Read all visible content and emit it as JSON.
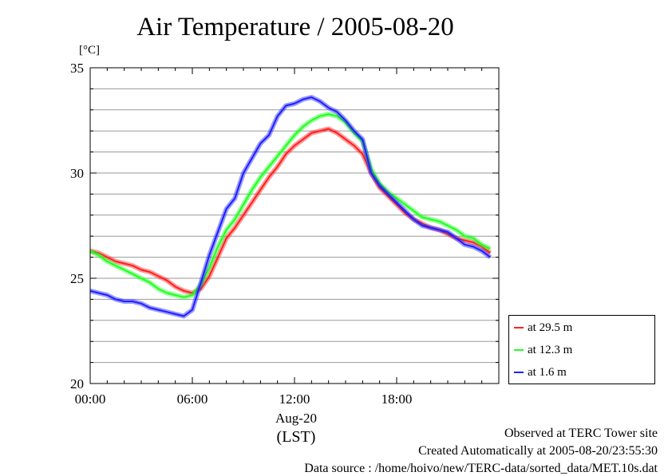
{
  "title": "Air Temperature / 2005-08-20",
  "unit_label": "[°C]",
  "date_label": "Aug-20",
  "tz_label": "(LST)",
  "footer": {
    "site": "Observed at TERC Tower site",
    "created": "Created Automatically at 2005-08-20/23:55:30",
    "source": "Data source : /home/hoivo/new/TERC-data/sorted_data/MET.10s.dat"
  },
  "chart_data": {
    "type": "line",
    "title": "Air Temperature / 2005-08-20",
    "ylabel": "[°C]",
    "xlabel": "(LST)",
    "xlim": [
      0,
      24
    ],
    "ylim": [
      20,
      35
    ],
    "y_ticks": [
      20,
      25,
      30,
      35
    ],
    "y_tick_labels": [
      "20",
      "25",
      "30",
      "35"
    ],
    "x_ticks": [
      0,
      6,
      12,
      18
    ],
    "x_tick_labels": [
      "00:00",
      "06:00",
      "12:00",
      "18:00"
    ],
    "grid": true,
    "legend_position": "right, outside, bottom",
    "x": [
      0,
      0.5,
      1,
      1.5,
      2,
      2.5,
      3,
      3.5,
      4,
      4.5,
      5,
      5.5,
      6,
      6.5,
      7,
      7.5,
      8,
      8.5,
      9,
      9.5,
      10,
      10.5,
      11,
      11.5,
      12,
      12.5,
      13,
      13.5,
      14,
      14.5,
      15,
      15.5,
      16,
      16.5,
      17,
      17.5,
      18,
      18.5,
      19,
      19.5,
      20,
      20.5,
      21,
      21.5,
      22,
      22.5,
      23,
      23.5
    ],
    "series": [
      {
        "name": "at 29.5 m",
        "color": "#ff2020",
        "values": [
          26.3,
          26.2,
          26.0,
          25.8,
          25.7,
          25.6,
          25.4,
          25.3,
          25.1,
          24.9,
          24.6,
          24.4,
          24.3,
          24.5,
          25.1,
          26.0,
          26.9,
          27.4,
          28.0,
          28.6,
          29.2,
          29.8,
          30.3,
          30.9,
          31.3,
          31.6,
          31.9,
          32.0,
          32.1,
          31.9,
          31.6,
          31.3,
          30.9,
          30.0,
          29.3,
          28.9,
          28.5,
          28.1,
          27.8,
          27.6,
          27.4,
          27.3,
          27.1,
          26.9,
          26.8,
          26.7,
          26.5,
          26.2
        ]
      },
      {
        "name": "at 12.3 m",
        "color": "#20ff20",
        "values": [
          26.3,
          26.1,
          25.8,
          25.6,
          25.4,
          25.2,
          25.0,
          24.8,
          24.5,
          24.3,
          24.2,
          24.1,
          24.2,
          24.7,
          25.5,
          26.5,
          27.3,
          27.8,
          28.5,
          29.2,
          29.8,
          30.3,
          30.8,
          31.3,
          31.8,
          32.2,
          32.5,
          32.7,
          32.8,
          32.7,
          32.4,
          31.9,
          31.5,
          30.2,
          29.5,
          29.1,
          28.8,
          28.5,
          28.2,
          27.9,
          27.8,
          27.7,
          27.5,
          27.3,
          27.0,
          26.9,
          26.6,
          26.4
        ]
      },
      {
        "name": "at 1.6 m",
        "color": "#2020ff",
        "values": [
          24.4,
          24.3,
          24.2,
          24.0,
          23.9,
          23.9,
          23.8,
          23.6,
          23.5,
          23.4,
          23.3,
          23.2,
          23.5,
          24.8,
          26.1,
          27.2,
          28.3,
          28.8,
          30.0,
          30.7,
          31.4,
          31.8,
          32.7,
          33.2,
          33.3,
          33.5,
          33.6,
          33.4,
          33.1,
          32.9,
          32.5,
          32.0,
          31.6,
          30.0,
          29.4,
          29.0,
          28.6,
          28.2,
          27.8,
          27.5,
          27.4,
          27.3,
          27.2,
          26.9,
          26.6,
          26.5,
          26.3,
          26.0
        ]
      }
    ]
  }
}
